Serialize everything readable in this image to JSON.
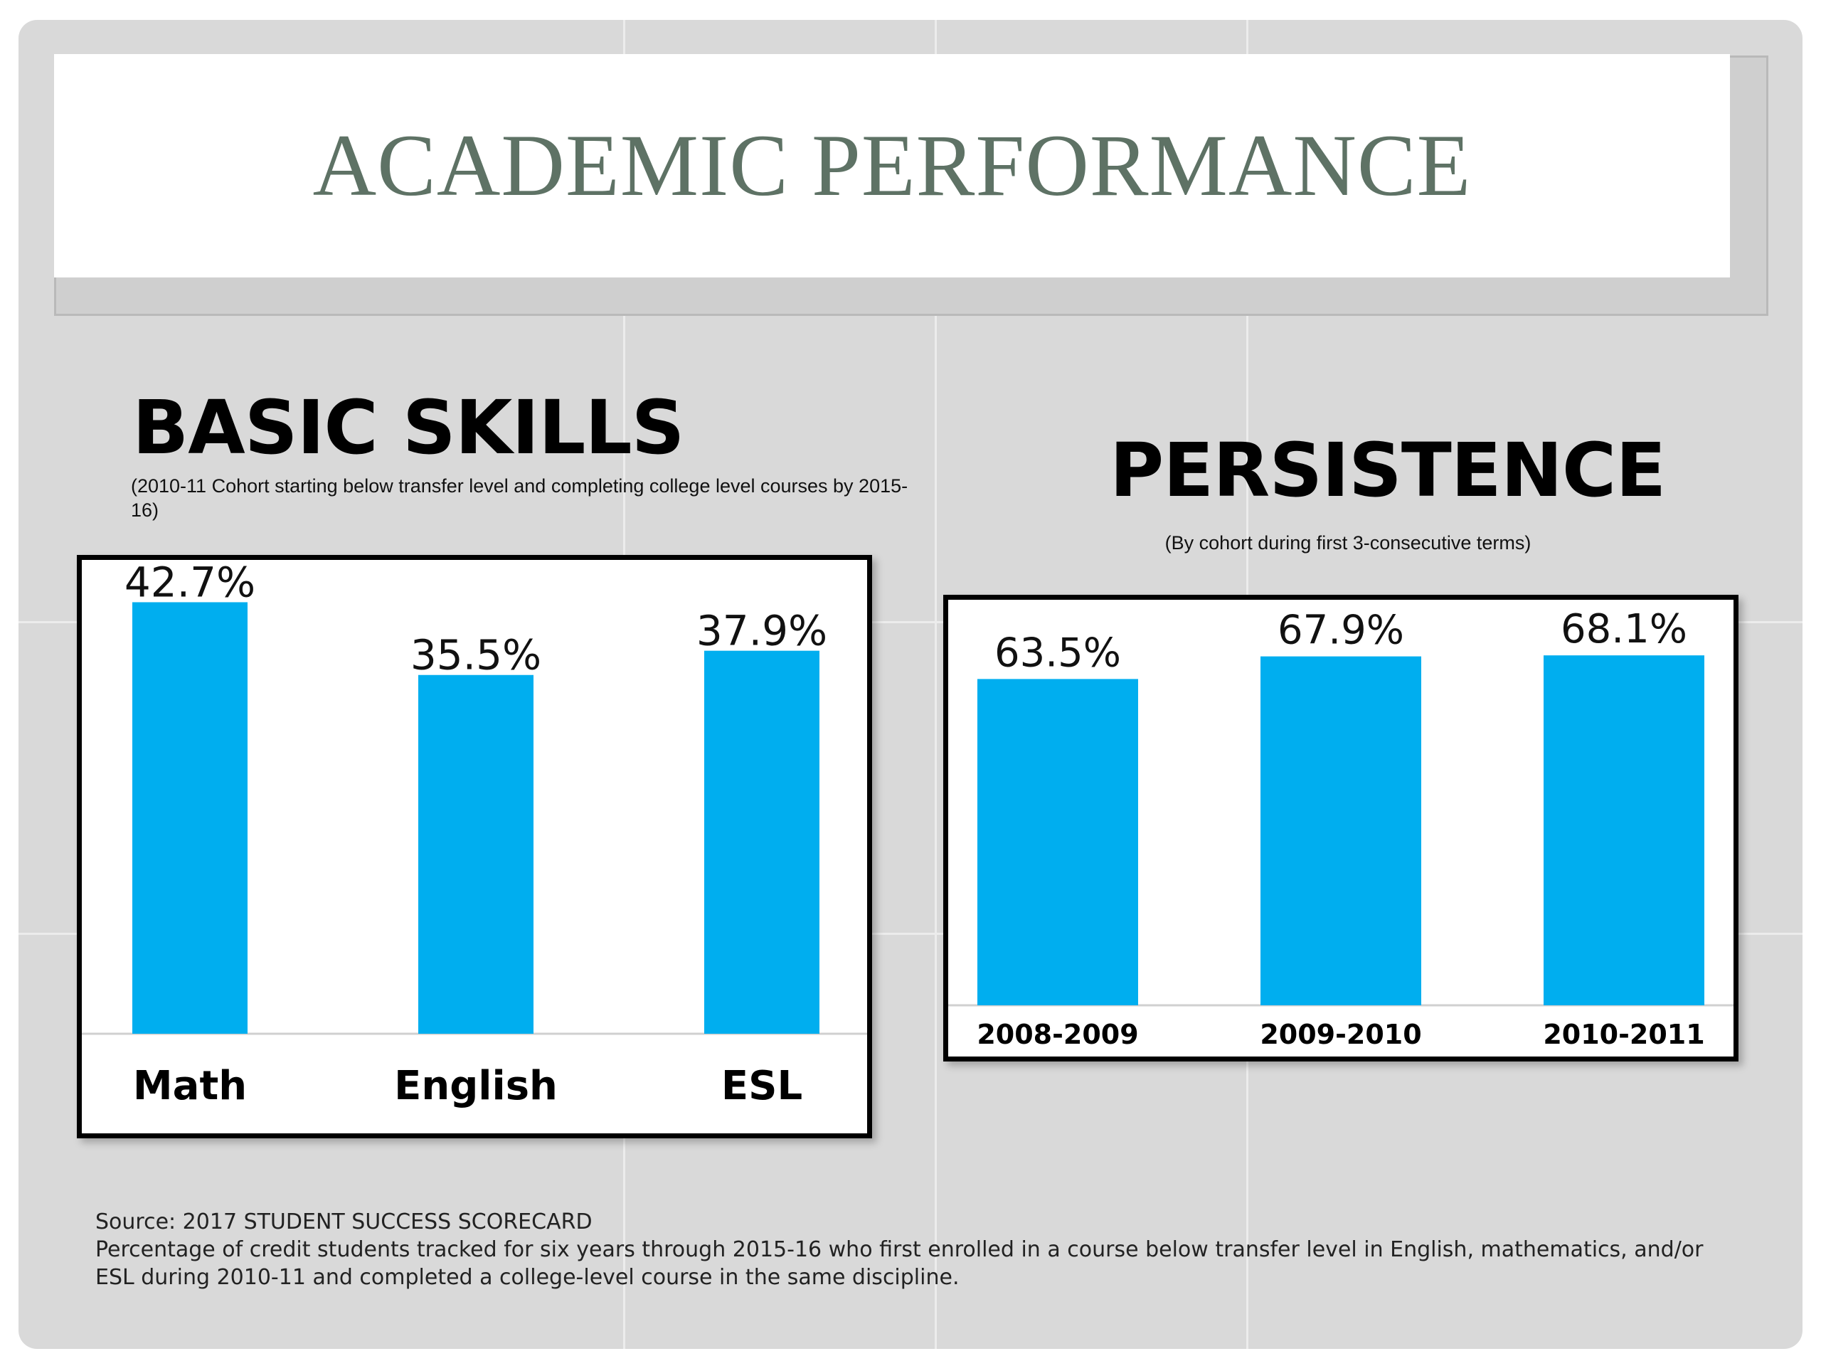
{
  "slide_title": "ACADEMIC PERFORMANCE",
  "colors": {
    "bar": "#00aeef",
    "title": "#5e7265",
    "background": "#d9d9d9"
  },
  "basic_skills": {
    "heading": "BASIC SKILLS",
    "note": "(2010-11 Cohort starting below transfer level and completing college level courses by 2015-16)"
  },
  "persistence": {
    "heading": "PERSISTENCE",
    "note": "(By cohort during first 3-consecutive terms)"
  },
  "source": {
    "line1": "Source: 2017 STUDENT SUCCESS SCORECARD",
    "line2": "Percentage of credit students tracked for six years through 2015-16 who first enrolled in a course below transfer level in English, mathematics, and/or ESL during 2010-11 and completed a college-level course in the same discipline."
  },
  "chart_data": [
    {
      "type": "bar",
      "categories": [
        "Math",
        "English",
        "ESL"
      ],
      "values": [
        42.7,
        35.5,
        37.9
      ],
      "value_labels": [
        "42.7%",
        "35.5%",
        "37.9%"
      ],
      "ylim": [
        0,
        44
      ],
      "grid": false,
      "legend": "none"
    },
    {
      "type": "bar",
      "categories": [
        "2008-2009",
        "2009-2010",
        "2010-2011"
      ],
      "values": [
        63.5,
        67.9,
        68.1
      ],
      "value_labels": [
        "63.5%",
        "67.9%",
        "68.1%"
      ],
      "ylim": [
        0,
        72
      ],
      "grid": false,
      "legend": "none"
    }
  ]
}
